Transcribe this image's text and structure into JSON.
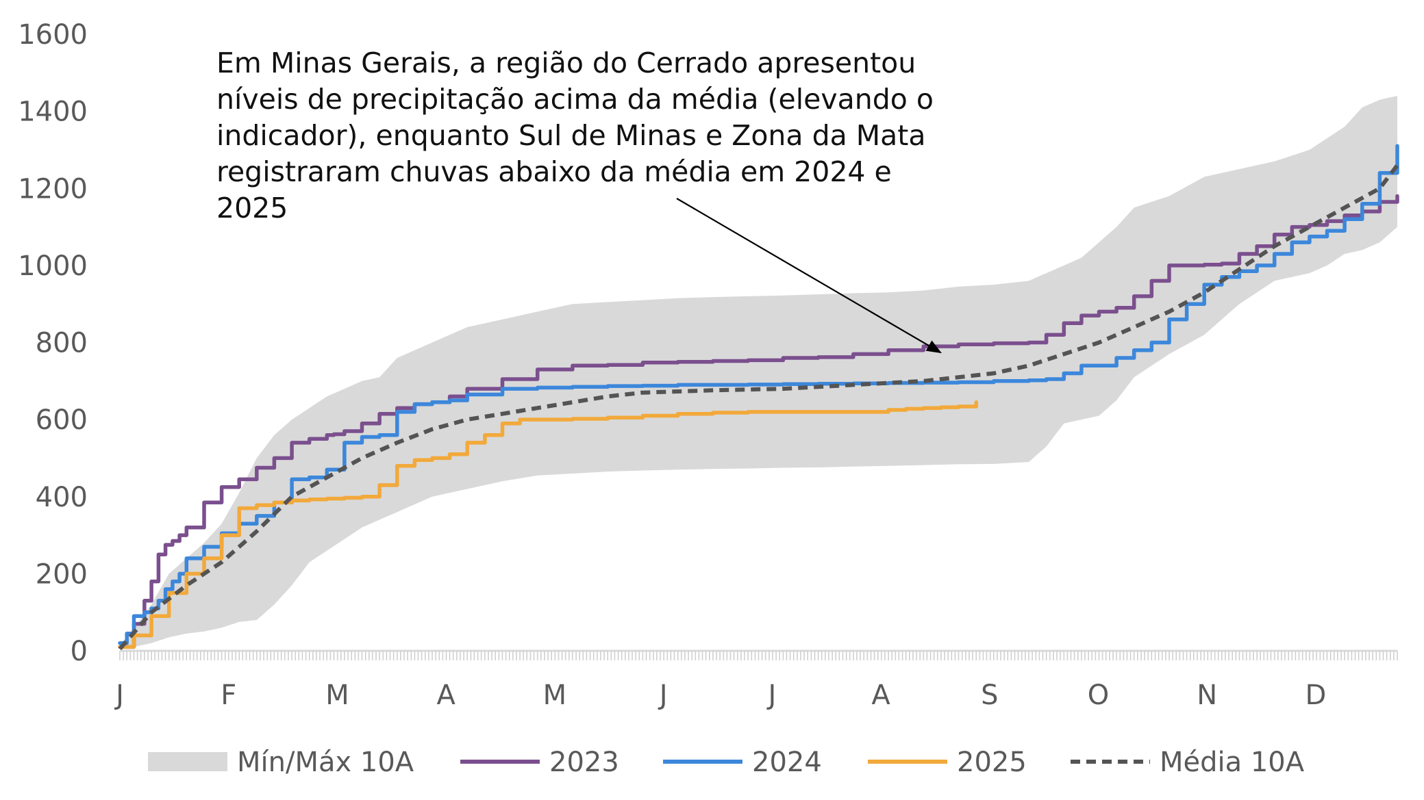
{
  "chart_data": {
    "type": "line",
    "title": "",
    "xlabel": "",
    "ylabel": "",
    "ylim": [
      0,
      1600
    ],
    "yticks": [
      0,
      200,
      400,
      600,
      800,
      1000,
      1200,
      1400,
      1600
    ],
    "xticks": [
      "J",
      "F",
      "M",
      "A",
      "M",
      "J",
      "J",
      "A",
      "S",
      "O",
      "N",
      "D"
    ],
    "x_unit": "day of year",
    "grid": false,
    "legend_position": "bottom",
    "annotation": {
      "text": "Em Minas Gerais, a região do Cerrado apresentou níveis de precipitação acima da média (elevando o indicador), enquanto Sul de Minas e Zona da Mata registraram chuvas abaixo da média em 2024 e 2025",
      "arrow_to": {
        "x": 236,
        "y": 760
      }
    },
    "band": {
      "name": "Mín/Máx 10A",
      "color": "#d9d9d9",
      "x": [
        1,
        5,
        10,
        15,
        20,
        25,
        30,
        35,
        40,
        45,
        50,
        55,
        60,
        65,
        70,
        75,
        80,
        90,
        100,
        110,
        120,
        130,
        140,
        150,
        160,
        170,
        180,
        190,
        200,
        210,
        220,
        230,
        240,
        250,
        260,
        265,
        270,
        275,
        280,
        285,
        290,
        300,
        310,
        320,
        330,
        340,
        345,
        350,
        355,
        360,
        365
      ],
      "min": [
        5,
        10,
        20,
        35,
        45,
        50,
        60,
        75,
        80,
        120,
        170,
        230,
        260,
        290,
        320,
        340,
        360,
        400,
        420,
        440,
        455,
        460,
        465,
        468,
        470,
        472,
        473,
        475,
        476,
        478,
        480,
        482,
        484,
        485,
        490,
        530,
        590,
        600,
        610,
        650,
        710,
        770,
        820,
        900,
        960,
        980,
        1000,
        1030,
        1040,
        1060,
        1100
      ],
      "max": [
        15,
        60,
        120,
        200,
        240,
        280,
        330,
        410,
        500,
        560,
        600,
        630,
        660,
        680,
        700,
        710,
        760,
        800,
        840,
        860,
        880,
        900,
        905,
        910,
        915,
        918,
        920,
        922,
        925,
        928,
        930,
        935,
        945,
        950,
        960,
        980,
        1000,
        1020,
        1060,
        1100,
        1150,
        1180,
        1230,
        1250,
        1270,
        1300,
        1330,
        1360,
        1410,
        1430,
        1440
      ]
    },
    "series": [
      {
        "name": "2023",
        "color": "#7b4f8e",
        "dash": false,
        "x": [
          1,
          5,
          8,
          10,
          12,
          14,
          16,
          18,
          20,
          25,
          30,
          35,
          40,
          45,
          50,
          55,
          60,
          62,
          65,
          70,
          75,
          80,
          85,
          90,
          95,
          100,
          110,
          120,
          130,
          140,
          150,
          160,
          170,
          180,
          190,
          200,
          210,
          220,
          230,
          240,
          250,
          260,
          265,
          270,
          275,
          280,
          285,
          290,
          295,
          300,
          305,
          310,
          315,
          320,
          325,
          330,
          335,
          340,
          345,
          350,
          355,
          360,
          365
        ],
        "y": [
          10,
          70,
          130,
          180,
          250,
          275,
          285,
          300,
          320,
          385,
          425,
          445,
          475,
          500,
          540,
          550,
          560,
          562,
          570,
          590,
          615,
          630,
          640,
          645,
          660,
          680,
          705,
          730,
          740,
          742,
          748,
          750,
          752,
          754,
          760,
          762,
          770,
          780,
          790,
          795,
          798,
          800,
          820,
          850,
          870,
          880,
          890,
          920,
          960,
          1000,
          1000,
          1002,
          1005,
          1030,
          1050,
          1080,
          1100,
          1105,
          1115,
          1130,
          1140,
          1165,
          1180
        ]
      },
      {
        "name": "2024",
        "color": "#3c87db",
        "dash": false,
        "x": [
          1,
          3,
          5,
          8,
          10,
          12,
          14,
          16,
          18,
          20,
          25,
          30,
          35,
          40,
          45,
          50,
          55,
          60,
          65,
          70,
          75,
          80,
          85,
          90,
          95,
          100,
          110,
          120,
          130,
          140,
          150,
          160,
          170,
          180,
          190,
          200,
          210,
          220,
          230,
          240,
          250,
          260,
          265,
          270,
          275,
          280,
          285,
          290,
          295,
          300,
          305,
          310,
          315,
          320,
          325,
          330,
          335,
          340,
          345,
          350,
          355,
          360,
          365
        ],
        "y": [
          20,
          45,
          90,
          100,
          110,
          130,
          160,
          180,
          200,
          240,
          270,
          305,
          330,
          350,
          385,
          445,
          450,
          470,
          540,
          555,
          560,
          620,
          640,
          645,
          650,
          665,
          680,
          683,
          685,
          687,
          688,
          690,
          690,
          691,
          692,
          693,
          694,
          695,
          696,
          697,
          700,
          702,
          705,
          720,
          740,
          740,
          760,
          780,
          800,
          860,
          900,
          950,
          970,
          985,
          1000,
          1030,
          1060,
          1075,
          1090,
          1120,
          1160,
          1240,
          1310
        ]
      },
      {
        "name": "2025",
        "color": "#f2a93b",
        "dash": false,
        "x": [
          1,
          5,
          10,
          15,
          20,
          25,
          30,
          35,
          40,
          45,
          50,
          55,
          60,
          65,
          70,
          75,
          80,
          85,
          90,
          95,
          100,
          105,
          110,
          115,
          120,
          130,
          140,
          150,
          160,
          170,
          180,
          190,
          200,
          210,
          220,
          225,
          230,
          235,
          240,
          245
        ],
        "y": [
          10,
          40,
          90,
          150,
          200,
          240,
          300,
          370,
          378,
          385,
          390,
          393,
          395,
          397,
          400,
          430,
          480,
          495,
          500,
          510,
          540,
          560,
          590,
          600,
          600,
          602,
          605,
          610,
          615,
          618,
          620,
          620,
          620,
          620,
          625,
          628,
          630,
          632,
          634,
          645
        ]
      },
      {
        "name": "Média 10A",
        "color": "#545454",
        "dash": true,
        "x": [
          1,
          10,
          20,
          30,
          40,
          50,
          60,
          70,
          80,
          90,
          100,
          110,
          120,
          130,
          140,
          150,
          160,
          170,
          180,
          190,
          200,
          210,
          220,
          230,
          240,
          250,
          260,
          270,
          280,
          290,
          300,
          310,
          320,
          330,
          340,
          350,
          360,
          365
        ],
        "y": [
          5,
          100,
          170,
          230,
          310,
          400,
          450,
          500,
          540,
          575,
          600,
          615,
          630,
          645,
          660,
          670,
          673,
          676,
          678,
          680,
          685,
          690,
          695,
          700,
          710,
          720,
          740,
          770,
          800,
          840,
          880,
          930,
          990,
          1050,
          1100,
          1150,
          1200,
          1260
        ]
      }
    ]
  },
  "legend": {
    "items": [
      {
        "label": "Mín/Máx 10A",
        "kind": "band",
        "color": "#d9d9d9"
      },
      {
        "label": "2023",
        "kind": "line",
        "color": "#7b4f8e"
      },
      {
        "label": "2024",
        "kind": "line",
        "color": "#3c87db"
      },
      {
        "label": "2025",
        "kind": "line",
        "color": "#f2a93b"
      },
      {
        "label": "Média 10A",
        "kind": "dash",
        "color": "#545454"
      }
    ]
  }
}
